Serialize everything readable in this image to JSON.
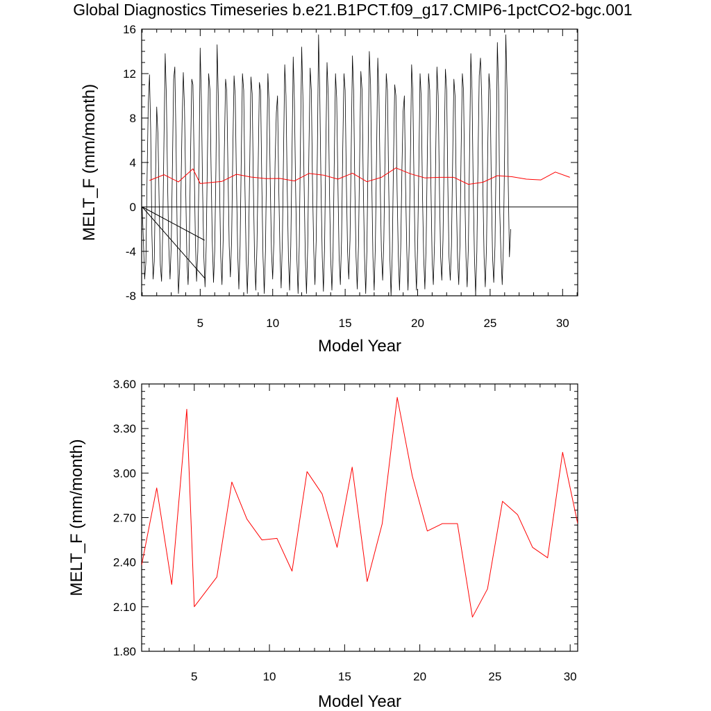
{
  "figure": {
    "title": "Global Diagnostics Timeseries b.e21.B1PCT.f09_g17.CMIP6-1pctCO2-bgc.001"
  },
  "colors": {
    "monthly": "#000000",
    "annual": "#ff0000",
    "axes": "#000000",
    "background": "#ffffff"
  },
  "chart_data": [
    {
      "type": "line",
      "title": "Global Diagnostics Timeseries b.e21.B1PCT.f09_g17.CMIP6-1pctCO2-bgc.001",
      "xlabel": "Model Year",
      "ylabel": "MELT_F (mm/month)",
      "xlim": [
        0.96,
        31.04
      ],
      "ylim": [
        -8,
        16
      ],
      "xticks": [
        5,
        10,
        15,
        20,
        25,
        30
      ],
      "xtick_labels": [
        "5",
        "10",
        "15",
        "20",
        "25",
        "30"
      ],
      "yticks": [
        -8,
        -4,
        0,
        4,
        8,
        12,
        16
      ],
      "ytick_labels": [
        "-8",
        "-4",
        "0",
        "4",
        "8",
        "12",
        "16"
      ],
      "zero_line": true,
      "grid": false,
      "series": [
        {
          "key": "monthly",
          "color": "#000000",
          "x_start": 1.0,
          "x_step": 0.083333,
          "y": [
            0.0,
            -3.2,
            -6.5,
            -5.0,
            2.5,
            9.2,
            11.9,
            7.0,
            -2.5,
            -6.5,
            -4.9,
            2.7,
            9.0,
            6.5,
            0.5,
            -5.2,
            -6.7,
            -2.0,
            6.2,
            13.8,
            10.0,
            2.0,
            -3.5,
            -6.5,
            -3.5,
            3.5,
            11.5,
            12.6,
            6.0,
            -3.0,
            -7.8,
            -5.5,
            0.8,
            7.5,
            12.1,
            9.0,
            1.5,
            -4.8,
            -7.0,
            -3.2,
            4.5,
            11.5,
            11.0,
            4.0,
            -3.0,
            -6.7,
            -4.0,
            3.2,
            14.3,
            9.5,
            1.5,
            -4.5,
            -7.2,
            -3.5,
            4.8,
            12.0,
            10.6,
            3.5,
            -3.0,
            -6.8,
            -4.0,
            3.5,
            14.6,
            10.0,
            2.0,
            -4.5,
            -7.0,
            -3.0,
            5.0,
            11.5,
            10.4,
            3.0,
            -3.5,
            -6.3,
            -3.0,
            5.0,
            11.8,
            10.0,
            2.5,
            -4.0,
            -7.4,
            -3.5,
            4.5,
            12.0,
            10.5,
            2.0,
            -4.5,
            -7.8,
            -4.0,
            4.0,
            11.7,
            10.2,
            2.0,
            -4.5,
            -7.5,
            -3.5,
            4.0,
            11.2,
            10.5,
            2.0,
            -4.5,
            -7.8,
            -4.0,
            4.0,
            12.0,
            9.5,
            2.0,
            -4.0,
            -6.5,
            -3.0,
            4.0,
            8.5,
            10.0,
            2.0,
            -4.0,
            -7.3,
            -3.0,
            5.0,
            12.8,
            10.0,
            2.0,
            -4.5,
            -7.5,
            -3.5,
            5.0,
            13.5,
            9.5,
            1.5,
            -4.5,
            -7.8,
            -3.5,
            5.5,
            14.4,
            10.0,
            2.0,
            -4.5,
            -7.8,
            -3.5,
            5.0,
            12.5,
            10.5,
            2.0,
            -4.0,
            -7.0,
            -3.0,
            5.0,
            15.5,
            10.0,
            2.0,
            -4.5,
            -7.6,
            -3.5,
            5.5,
            13.0,
            10.0,
            1.5,
            -4.5,
            -7.5,
            -4.0,
            4.5,
            12.0,
            9.8,
            2.0,
            -4.5,
            -7.0,
            -3.0,
            5.0,
            12.0,
            10.5,
            2.0,
            -4.0,
            -6.5,
            -3.0,
            5.0,
            13.6,
            10.5,
            2.0,
            -4.5,
            -7.4,
            -3.5,
            4.5,
            12.2,
            10.5,
            2.0,
            -4.5,
            -7.8,
            -4.0,
            5.0,
            14.0,
            11.0,
            2.5,
            -4.5,
            -7.5,
            -3.5,
            5.0,
            13.4,
            10.0,
            2.0,
            -4.0,
            -6.6,
            -3.0,
            4.5,
            12.0,
            10.5,
            2.0,
            -4.5,
            -8.0,
            -4.0,
            4.0,
            11.0,
            10.0,
            1.5,
            -4.5,
            -7.5,
            -3.5,
            3.5,
            8.6,
            10.0,
            2.0,
            -4.0,
            -7.5,
            -3.5,
            4.5,
            12.8,
            10.5,
            2.0,
            -4.5,
            -7.5,
            -3.5,
            3.5,
            12.0,
            9.8,
            1.0,
            -4.5,
            -7.4,
            -3.5,
            4.5,
            12.0,
            10.5,
            2.0,
            -4.9,
            -7.0,
            -3.0,
            5.0,
            12.6,
            10.0,
            2.0,
            -4.5,
            -6.6,
            -3.0,
            5.0,
            12.4,
            10.5,
            2.0,
            -4.5,
            -6.6,
            -3.5,
            4.5,
            11.5,
            10.0,
            1.0,
            -4.5,
            -7.0,
            -3.5,
            5.0,
            12.0,
            10.5,
            1.5,
            -4.5,
            -7.2,
            -3.5,
            5.0,
            13.8,
            10.5,
            2.0,
            -4.5,
            -7.9,
            -4.0,
            4.5,
            11.8,
            13.4,
            10.0,
            1.5,
            -4.5,
            -7.2,
            -3.5,
            5.0,
            12.0,
            10.5,
            2.0,
            -4.5,
            -6.8,
            -3.5,
            5.0,
            14.8,
            10.5,
            -0.5,
            -4.5,
            -7.0,
            -3.5,
            5.0,
            15.5,
            10.5,
            2.0,
            -4.5,
            -2.0
          ]
        },
        {
          "key": "annual",
          "color": "#ff0000",
          "x": [
            1.5,
            2.5,
            3.5,
            4.5,
            5.0,
            6.5,
            7.5,
            8.5,
            9.5,
            10.5,
            11.5,
            12.5,
            13.5,
            14.5,
            15.5,
            16.5,
            17.5,
            18.5,
            19.5,
            20.5,
            21.5,
            22.5,
            23.5,
            24.5,
            25.5,
            26.5,
            27.5,
            28.5,
            29.5,
            30.5
          ],
          "y": [
            2.38,
            2.9,
            2.25,
            3.43,
            2.1,
            2.3,
            2.94,
            2.69,
            2.55,
            2.56,
            2.34,
            3.01,
            2.86,
            2.5,
            3.04,
            2.27,
            2.66,
            3.51,
            2.98,
            2.61,
            2.66,
            2.66,
            2.03,
            2.22,
            2.81,
            2.72,
            2.5,
            2.43,
            3.14,
            2.66
          ]
        }
      ],
      "trend_lines": [
        {
          "x": [
            1.0,
            5.3
          ],
          "y": [
            0.0,
            -3.0
          ]
        },
        {
          "x": [
            1.0,
            5.3
          ],
          "y": [
            0.0,
            -6.4
          ]
        }
      ]
    },
    {
      "type": "line",
      "xlabel": "Model Year",
      "ylabel": "MELT_F (mm/month)",
      "xlim": [
        1.5,
        30.5
      ],
      "ylim": [
        1.8,
        3.6
      ],
      "xticks": [
        5,
        10,
        15,
        20,
        25,
        30
      ],
      "xtick_labels": [
        "5",
        "10",
        "15",
        "20",
        "25",
        "30"
      ],
      "yticks": [
        1.8,
        2.1,
        2.4,
        2.7,
        3.0,
        3.3,
        3.6
      ],
      "ytick_labels": [
        "1.80",
        "2.10",
        "2.40",
        "2.70",
        "3.00",
        "3.30",
        "3.60"
      ],
      "grid": false,
      "series": [
        {
          "key": "annual",
          "color": "#ff0000",
          "x": [
            1.5,
            2.5,
            3.5,
            4.5,
            5.0,
            6.5,
            7.5,
            8.5,
            9.5,
            10.5,
            11.5,
            12.5,
            13.5,
            14.5,
            15.5,
            16.5,
            17.5,
            18.5,
            19.5,
            20.5,
            21.5,
            22.5,
            23.5,
            24.5,
            25.5,
            26.5,
            27.5,
            28.5,
            29.5,
            30.5
          ],
          "y": [
            2.38,
            2.9,
            2.25,
            3.43,
            2.1,
            2.3,
            2.94,
            2.69,
            2.55,
            2.56,
            2.34,
            3.01,
            2.86,
            2.5,
            3.04,
            2.27,
            2.66,
            3.51,
            2.98,
            2.61,
            2.66,
            2.66,
            2.03,
            2.22,
            2.81,
            2.72,
            2.5,
            2.43,
            3.14,
            2.66
          ]
        }
      ]
    }
  ]
}
